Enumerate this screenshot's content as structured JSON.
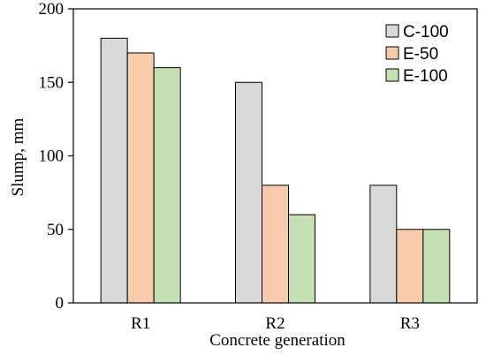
{
  "chart_data": {
    "type": "bar",
    "categories": [
      "R1",
      "R2",
      "R3"
    ],
    "series": [
      {
        "name": "C-100",
        "values": [
          180,
          150,
          80
        ],
        "color": "#D9D9D9"
      },
      {
        "name": "E-50",
        "values": [
          170,
          80,
          50
        ],
        "color": "#F8CBAD"
      },
      {
        "name": "E-100",
        "values": [
          160,
          60,
          50
        ],
        "color": "#C5E0B4"
      }
    ],
    "xlabel": "Concrete generation",
    "ylabel": "Slump, mm",
    "ylim": [
      0,
      200
    ],
    "yticks": [
      "0",
      "50",
      "100",
      "150",
      "200"
    ],
    "grid": false,
    "legend_position": "top-right"
  }
}
